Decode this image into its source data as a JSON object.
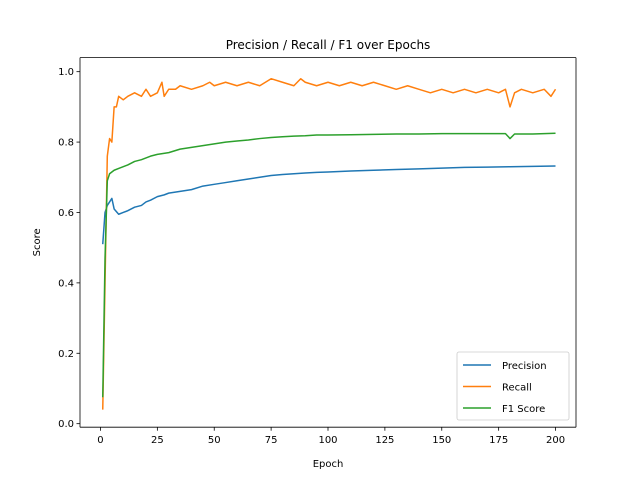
{
  "chart_data": {
    "type": "line",
    "title": "Precision / Recall / F1 over Epochs",
    "xlabel": "Epoch",
    "ylabel": "Score",
    "xlim": [
      -9,
      209
    ],
    "ylim": [
      -0.01,
      1.04
    ],
    "xticks": [
      0,
      25,
      50,
      75,
      100,
      125,
      150,
      175,
      200
    ],
    "yticks": [
      0.0,
      0.2,
      0.4,
      0.6,
      0.8,
      1.0
    ],
    "grid": false,
    "legend_position": "lower-right",
    "series": [
      {
        "name": "Precision",
        "color": "#1f77b4",
        "points": [
          [
            1,
            0.51
          ],
          [
            2,
            0.6
          ],
          [
            3,
            0.62
          ],
          [
            4,
            0.63
          ],
          [
            5,
            0.64
          ],
          [
            6,
            0.61
          ],
          [
            8,
            0.595
          ],
          [
            10,
            0.6
          ],
          [
            12,
            0.605
          ],
          [
            15,
            0.615
          ],
          [
            18,
            0.62
          ],
          [
            20,
            0.63
          ],
          [
            22,
            0.635
          ],
          [
            25,
            0.645
          ],
          [
            28,
            0.65
          ],
          [
            30,
            0.655
          ],
          [
            35,
            0.66
          ],
          [
            40,
            0.665
          ],
          [
            45,
            0.675
          ],
          [
            50,
            0.68
          ],
          [
            55,
            0.685
          ],
          [
            60,
            0.69
          ],
          [
            65,
            0.695
          ],
          [
            70,
            0.7
          ],
          [
            75,
            0.705
          ],
          [
            80,
            0.708
          ],
          [
            85,
            0.71
          ],
          [
            90,
            0.712
          ],
          [
            95,
            0.714
          ],
          [
            100,
            0.715
          ],
          [
            110,
            0.718
          ],
          [
            120,
            0.72
          ],
          [
            130,
            0.722
          ],
          [
            140,
            0.724
          ],
          [
            150,
            0.726
          ],
          [
            160,
            0.728
          ],
          [
            170,
            0.729
          ],
          [
            180,
            0.73
          ],
          [
            190,
            0.731
          ],
          [
            200,
            0.732
          ]
        ]
      },
      {
        "name": "Recall",
        "color": "#ff7f0e",
        "points": [
          [
            1,
            0.04
          ],
          [
            2,
            0.4
          ],
          [
            3,
            0.76
          ],
          [
            4,
            0.81
          ],
          [
            5,
            0.8
          ],
          [
            6,
            0.9
          ],
          [
            7,
            0.9
          ],
          [
            8,
            0.93
          ],
          [
            10,
            0.92
          ],
          [
            12,
            0.93
          ],
          [
            15,
            0.94
          ],
          [
            18,
            0.93
          ],
          [
            20,
            0.95
          ],
          [
            22,
            0.93
          ],
          [
            25,
            0.94
          ],
          [
            27,
            0.97
          ],
          [
            28,
            0.93
          ],
          [
            30,
            0.95
          ],
          [
            33,
            0.95
          ],
          [
            35,
            0.96
          ],
          [
            40,
            0.95
          ],
          [
            45,
            0.96
          ],
          [
            48,
            0.97
          ],
          [
            50,
            0.96
          ],
          [
            55,
            0.97
          ],
          [
            60,
            0.96
          ],
          [
            65,
            0.97
          ],
          [
            70,
            0.96
          ],
          [
            75,
            0.98
          ],
          [
            80,
            0.97
          ],
          [
            85,
            0.96
          ],
          [
            88,
            0.98
          ],
          [
            90,
            0.97
          ],
          [
            95,
            0.96
          ],
          [
            100,
            0.97
          ],
          [
            105,
            0.96
          ],
          [
            110,
            0.97
          ],
          [
            115,
            0.96
          ],
          [
            120,
            0.97
          ],
          [
            125,
            0.96
          ],
          [
            130,
            0.95
          ],
          [
            135,
            0.96
          ],
          [
            140,
            0.95
          ],
          [
            145,
            0.94
          ],
          [
            150,
            0.95
          ],
          [
            155,
            0.94
          ],
          [
            160,
            0.95
          ],
          [
            165,
            0.94
          ],
          [
            170,
            0.95
          ],
          [
            175,
            0.94
          ],
          [
            178,
            0.95
          ],
          [
            180,
            0.9
          ],
          [
            182,
            0.94
          ],
          [
            185,
            0.95
          ],
          [
            190,
            0.94
          ],
          [
            195,
            0.95
          ],
          [
            198,
            0.93
          ],
          [
            200,
            0.95
          ]
        ]
      },
      {
        "name": "F1 Score",
        "color": "#2ca02c",
        "points": [
          [
            1,
            0.075
          ],
          [
            2,
            0.47
          ],
          [
            3,
            0.69
          ],
          [
            4,
            0.71
          ],
          [
            5,
            0.715
          ],
          [
            6,
            0.72
          ],
          [
            8,
            0.725
          ],
          [
            10,
            0.73
          ],
          [
            12,
            0.735
          ],
          [
            15,
            0.745
          ],
          [
            18,
            0.75
          ],
          [
            20,
            0.755
          ],
          [
            22,
            0.76
          ],
          [
            25,
            0.765
          ],
          [
            30,
            0.77
          ],
          [
            35,
            0.78
          ],
          [
            40,
            0.785
          ],
          [
            45,
            0.79
          ],
          [
            50,
            0.795
          ],
          [
            55,
            0.8
          ],
          [
            60,
            0.803
          ],
          [
            65,
            0.806
          ],
          [
            70,
            0.81
          ],
          [
            75,
            0.813
          ],
          [
            80,
            0.815
          ],
          [
            85,
            0.817
          ],
          [
            90,
            0.818
          ],
          [
            95,
            0.82
          ],
          [
            100,
            0.82
          ],
          [
            110,
            0.821
          ],
          [
            120,
            0.822
          ],
          [
            130,
            0.823
          ],
          [
            140,
            0.823
          ],
          [
            150,
            0.824
          ],
          [
            160,
            0.824
          ],
          [
            170,
            0.824
          ],
          [
            178,
            0.824
          ],
          [
            180,
            0.81
          ],
          [
            182,
            0.823
          ],
          [
            190,
            0.823
          ],
          [
            200,
            0.825
          ]
        ]
      }
    ]
  }
}
